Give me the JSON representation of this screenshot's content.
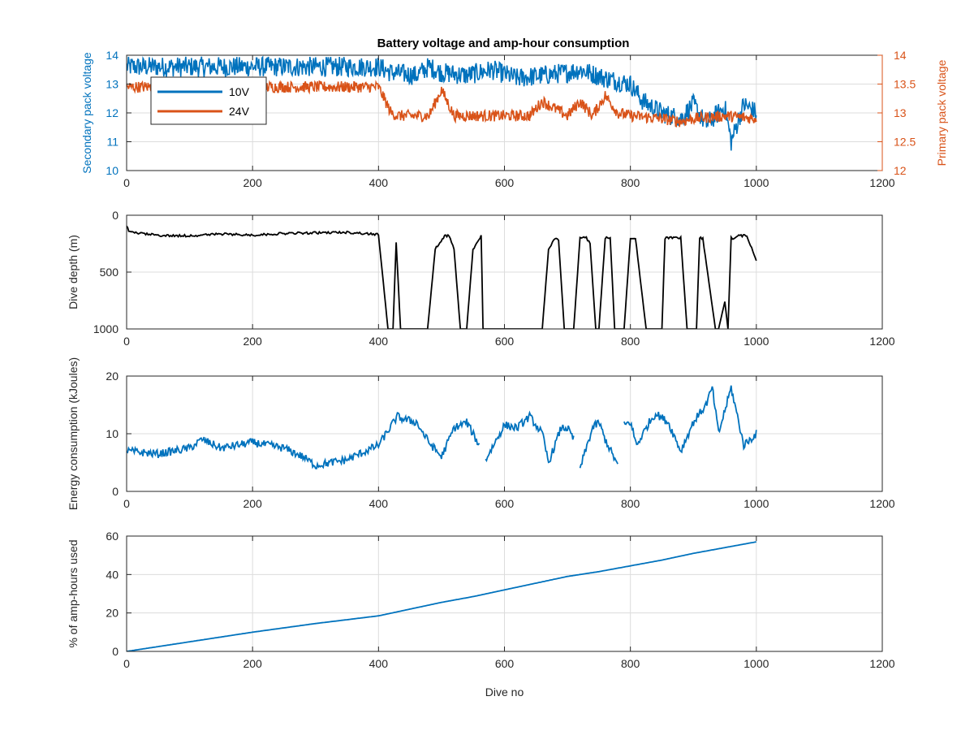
{
  "figure": {
    "title": "Battery voltage and amp-hour consumption",
    "colors": {
      "blue": "#0072BD",
      "orange": "#D95319",
      "black": "#000000",
      "grid": "#dcdcdc",
      "axis": "#262626"
    }
  },
  "chart_data": [
    {
      "id": "voltage",
      "type": "line",
      "title": "Battery voltage and amp-hour consumption",
      "xlabel": "",
      "ylabel": "Secondary pack voltage",
      "ylabel_right": "Primary pack voltage",
      "xlim": [
        0,
        1200
      ],
      "ylim": [
        10,
        14
      ],
      "ylim_right": [
        12,
        14
      ],
      "xticks": [
        0,
        200,
        400,
        600,
        800,
        1000,
        1200
      ],
      "yticks": [
        10,
        11,
        12,
        13,
        14
      ],
      "yticks_right": [
        12,
        12.5,
        13,
        13.5,
        14
      ],
      "grid": true,
      "legend": {
        "placement": "top-left",
        "entries": [
          "10V",
          "24V"
        ]
      },
      "series": [
        {
          "name": "10V",
          "axis": "left",
          "color": "#0072BD",
          "x": [
            0,
            100,
            200,
            300,
            400,
            420,
            460,
            480,
            500,
            540,
            580,
            620,
            660,
            700,
            720,
            760,
            800,
            820,
            850,
            880,
            900,
            920,
            950,
            960,
            980,
            1000
          ],
          "y": [
            13.6,
            13.6,
            13.6,
            13.6,
            13.6,
            13.4,
            13.3,
            13.6,
            13.4,
            13.3,
            13.5,
            13.2,
            13.3,
            13.4,
            13.5,
            13.2,
            13.0,
            12.4,
            12.0,
            11.8,
            12.3,
            11.6,
            12.2,
            11.0,
            12.3,
            12.0
          ],
          "band": 0.35
        },
        {
          "name": "24V",
          "axis": "right",
          "color": "#D95319",
          "x": [
            0,
            100,
            200,
            300,
            400,
            420,
            430,
            480,
            500,
            520,
            560,
            600,
            640,
            660,
            700,
            720,
            740,
            760,
            780,
            800,
            850,
            880,
            900,
            950,
            1000
          ],
          "y": [
            13.45,
            13.45,
            13.45,
            13.45,
            13.45,
            13.0,
            12.95,
            12.95,
            13.4,
            12.95,
            12.95,
            12.95,
            12.95,
            13.2,
            12.95,
            13.2,
            12.95,
            13.3,
            13.0,
            12.95,
            12.9,
            12.85,
            12.9,
            12.95,
            12.9
          ],
          "band": 0.1
        }
      ]
    },
    {
      "id": "depth",
      "type": "line",
      "xlabel": "",
      "ylabel": "Dive depth (m)",
      "xlim": [
        0,
        1200
      ],
      "ylim": [
        1000,
        0
      ],
      "reverse_y": true,
      "xticks": [
        0,
        200,
        400,
        600,
        800,
        1000,
        1200
      ],
      "yticks": [
        0,
        500,
        1000
      ],
      "grid": true,
      "series": [
        {
          "name": "",
          "color": "#000000",
          "x": [
            0,
            5,
            40,
            60,
            100,
            150,
            200,
            250,
            300,
            350,
            400,
            415,
            418,
            423,
            428,
            435,
            437,
            442,
            470,
            478,
            490,
            505,
            512,
            520,
            530,
            540,
            550,
            563,
            566,
            600,
            650,
            660,
            670,
            680,
            686,
            695,
            700,
            710,
            720,
            730,
            736,
            745,
            750,
            760,
            768,
            775,
            780,
            790,
            800,
            808,
            825,
            830,
            840,
            850,
            855,
            880,
            890,
            905,
            910,
            915,
            935,
            940,
            950,
            955,
            960,
            962,
            965,
            972,
            985,
            1000
          ],
          "y": [
            100,
            150,
            170,
            180,
            180,
            165,
            175,
            160,
            155,
            150,
            170,
            1000,
            1000,
            1000,
            230,
            1000,
            1000,
            1000,
            1000,
            1000,
            300,
            180,
            180,
            300,
            1000,
            1000,
            300,
            180,
            1000,
            1000,
            1000,
            1000,
            300,
            200,
            220,
            1000,
            1000,
            1000,
            200,
            200,
            250,
            1000,
            1000,
            200,
            200,
            1000,
            1000,
            1000,
            200,
            200,
            1000,
            1000,
            1000,
            1000,
            200,
            200,
            1000,
            1000,
            200,
            200,
            1000,
            1000,
            760,
            1000,
            200,
            200,
            200,
            180,
            180,
            400
          ]
        }
      ]
    },
    {
      "id": "energy",
      "type": "line",
      "xlabel": "",
      "ylabel": "Energy consumption (kJoules)",
      "xlim": [
        0,
        1200
      ],
      "ylim": [
        0,
        20
      ],
      "xticks": [
        0,
        200,
        400,
        600,
        800,
        1000,
        1200
      ],
      "yticks": [
        0,
        10,
        20
      ],
      "grid": true,
      "series": [
        {
          "name": "",
          "color": "#0072BD",
          "x": [
            0,
            50,
            100,
            120,
            150,
            200,
            250,
            280,
            300,
            350,
            400,
            430,
            440,
            460,
            480,
            500,
            520,
            540,
            560,
            null,
            570,
            600,
            620,
            640,
            660,
            670,
            690,
            700,
            710,
            null,
            720,
            740,
            750,
            760,
            780,
            null,
            790,
            800,
            810,
            830,
            840,
            860,
            880,
            900,
            920,
            930,
            940,
            950,
            960,
            970,
            980,
            1000
          ],
          "y": [
            7,
            6.5,
            7.5,
            9,
            7.5,
            8.5,
            7.5,
            6,
            4.5,
            5.5,
            8,
            13,
            12.5,
            12,
            8.5,
            6,
            11,
            12,
            8,
            null,
            5.5,
            11.5,
            11,
            13,
            10,
            5,
            11,
            11,
            9,
            null,
            4,
            11,
            12,
            9,
            4.5,
            null,
            11.5,
            12,
            8,
            12,
            13.5,
            12,
            7,
            12,
            15,
            18,
            10,
            14,
            18,
            13,
            8,
            10
          ]
        }
      ]
    },
    {
      "id": "amphours",
      "type": "line",
      "xlabel": "Dive no",
      "ylabel": "% of amp-hours used",
      "xlim": [
        0,
        1200
      ],
      "ylim": [
        0,
        60
      ],
      "xticks": [
        0,
        200,
        400,
        600,
        800,
        1000,
        1200
      ],
      "yticks": [
        0,
        20,
        40,
        60
      ],
      "grid": true,
      "series": [
        {
          "name": "",
          "color": "#0072BD",
          "x": [
            0,
            100,
            200,
            300,
            400,
            450,
            500,
            550,
            600,
            650,
            700,
            750,
            800,
            850,
            900,
            950,
            1000
          ],
          "y": [
            0,
            5,
            10,
            14.5,
            18.5,
            22,
            25.5,
            28.5,
            32,
            35.5,
            39,
            41.5,
            44.5,
            47.5,
            51,
            54,
            57
          ]
        }
      ]
    }
  ]
}
